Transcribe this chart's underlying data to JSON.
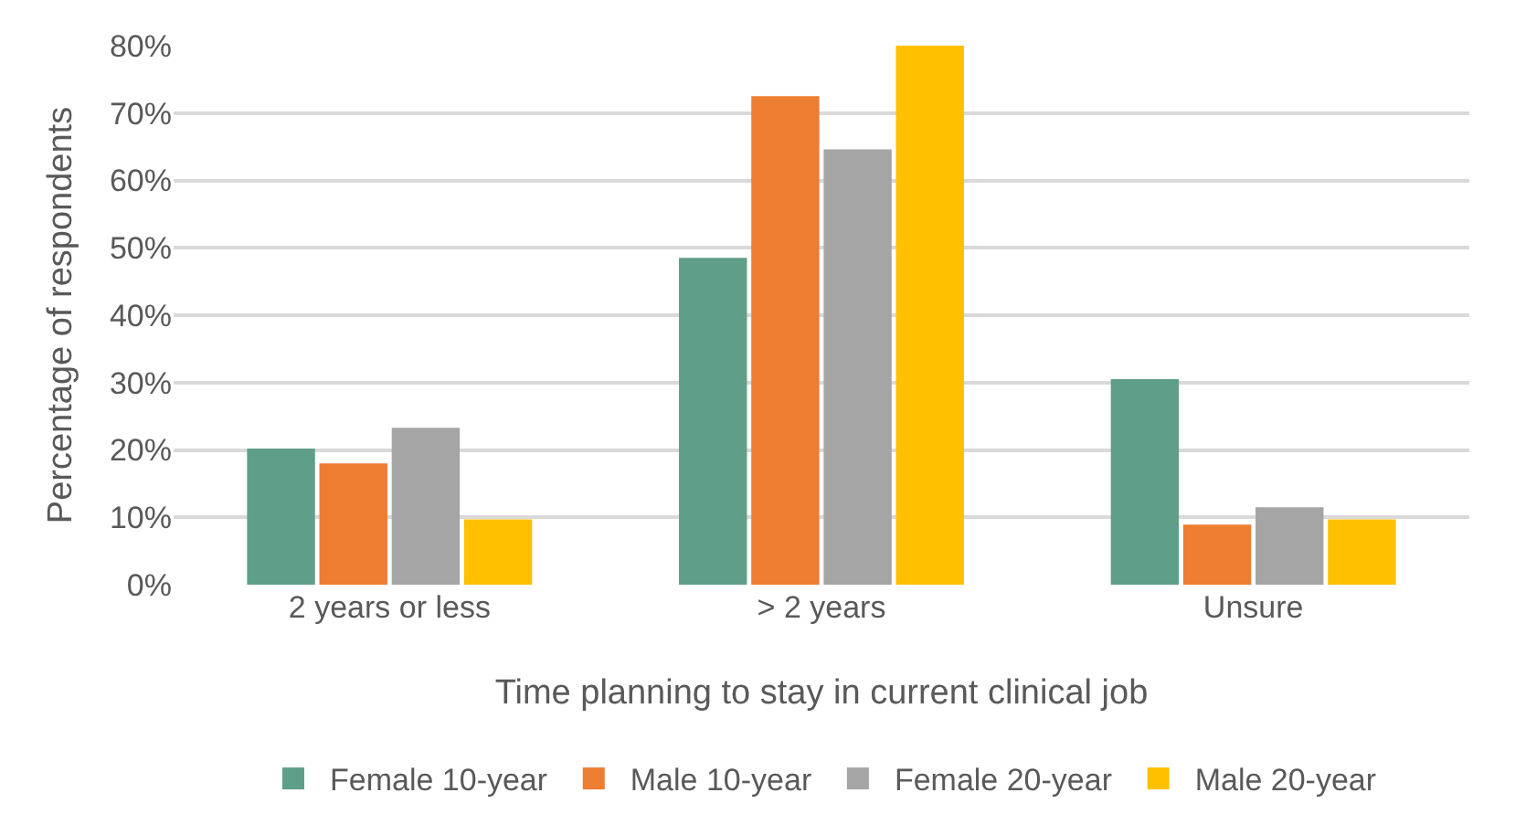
{
  "chart_data": {
    "type": "bar",
    "xlabel": "Time planning to stay in current clinical job",
    "ylabel": "Percentage of respondents",
    "categories": [
      "2 years or less",
      "> 2 years",
      "Unsure"
    ],
    "series": [
      {
        "name": "Female 10-year",
        "color": "#5f9f8a",
        "values": [
          20.2,
          48.5,
          30.5
        ]
      },
      {
        "name": "Male 10-year",
        "color": "#ed7d31",
        "values": [
          18.0,
          72.5,
          8.9
        ]
      },
      {
        "name": "Female 20-year",
        "color": "#a5a5a5",
        "values": [
          23.3,
          64.6,
          11.5
        ]
      },
      {
        "name": "Male 20-year",
        "color": "#ffc000",
        "values": [
          9.7,
          80,
          9.7
        ]
      }
    ],
    "ylim": [
      0,
      80
    ],
    "yticks": [
      {
        "value": 0,
        "label": "0%"
      },
      {
        "value": 10,
        "label": "10%"
      },
      {
        "value": 20,
        "label": "20%"
      },
      {
        "value": 30,
        "label": "30%"
      },
      {
        "value": 40,
        "label": "40%"
      },
      {
        "value": 50,
        "label": "50%"
      },
      {
        "value": 60,
        "label": "60%"
      },
      {
        "value": 70,
        "label": "70%"
      },
      {
        "value": 80,
        "label": "80%"
      }
    ],
    "grid": "y",
    "legend": "bottom"
  }
}
